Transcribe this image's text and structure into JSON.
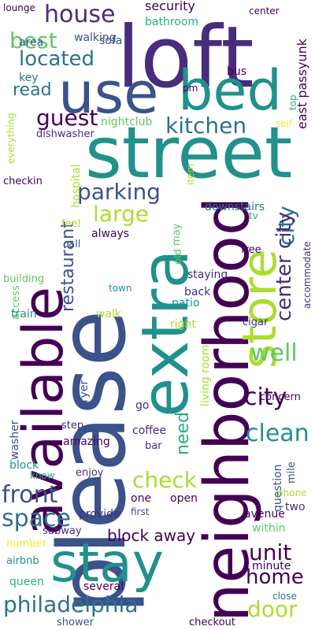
{
  "palette": {
    "dark_purple": "#440154",
    "indigo": "#472d7b",
    "blue": "#3b528b",
    "steel": "#2c728e",
    "teal": "#21918c",
    "green_teal": "#28ae80",
    "green": "#5ec962",
    "lime": "#addc30",
    "yellow": "#fde725"
  },
  "words": [
    {
      "text": "loft",
      "color": "#472d7b"
    },
    {
      "text": "street",
      "color": "#21918c"
    },
    {
      "text": "please",
      "color": "#3b528b"
    },
    {
      "text": "neighborhood",
      "color": "#440154"
    },
    {
      "text": "available",
      "color": "#440154"
    },
    {
      "text": "stay",
      "color": "#21918c"
    },
    {
      "text": "extra",
      "color": "#21918c"
    },
    {
      "text": "store",
      "color": "#addc30"
    },
    {
      "text": "use",
      "color": "#3b528b"
    },
    {
      "text": "bed",
      "color": "#21918c"
    },
    {
      "text": "house",
      "color": "#472d7b"
    },
    {
      "text": "best",
      "color": "#5ec962"
    },
    {
      "text": "located",
      "color": "#2c728e"
    },
    {
      "text": "read",
      "color": "#2c728e"
    },
    {
      "text": "guest",
      "color": "#440154"
    },
    {
      "text": "kitchen",
      "color": "#2c728e"
    },
    {
      "text": "parking",
      "color": "#3b528b"
    },
    {
      "text": "large",
      "color": "#addc30"
    },
    {
      "text": "city",
      "color": "#2c728e"
    },
    {
      "text": "center city",
      "color": "#472d7b"
    },
    {
      "text": "restaurant",
      "color": "#3b528b"
    },
    {
      "text": "well",
      "color": "#5ec962"
    },
    {
      "text": "city",
      "color": "#440154"
    },
    {
      "text": "need",
      "color": "#28ae80"
    },
    {
      "text": "clean",
      "color": "#21918c"
    },
    {
      "text": "check",
      "color": "#addc30"
    },
    {
      "text": "front",
      "color": "#3b528b"
    },
    {
      "text": "space",
      "color": "#2c728e"
    },
    {
      "text": "unit",
      "color": "#440154"
    },
    {
      "text": "home",
      "color": "#440154"
    },
    {
      "text": "philadelphia",
      "color": "#2c728e"
    },
    {
      "text": "door",
      "color": "#addc30"
    },
    {
      "text": "block away",
      "color": "#440154"
    },
    {
      "text": "east passyunk",
      "color": "#440154"
    },
    {
      "text": "security",
      "color": "#440154"
    },
    {
      "text": "center",
      "color": "#440154"
    },
    {
      "text": "lounge",
      "color": "#440154"
    },
    {
      "text": "area",
      "color": "#3b528b"
    },
    {
      "text": "sofa",
      "color": "#3b528b"
    },
    {
      "text": "walking",
      "color": "#3b528b"
    },
    {
      "text": "bathroom",
      "color": "#28ae80"
    },
    {
      "text": "key",
      "color": "#2c728e"
    },
    {
      "text": "bus",
      "color": "#440154"
    },
    {
      "text": "pm",
      "color": "#440154"
    },
    {
      "text": "top",
      "color": "#28ae80"
    },
    {
      "text": "self",
      "color": "#fde725"
    },
    {
      "text": "nightclub",
      "color": "#5ec962"
    },
    {
      "text": "dishwasher",
      "color": "#472d7b"
    },
    {
      "text": "everything",
      "color": "#addc30"
    },
    {
      "text": "checkin",
      "color": "#440154"
    },
    {
      "text": "hospital",
      "color": "#addc30"
    },
    {
      "text": "item",
      "color": "#addc30"
    },
    {
      "text": "downstairs",
      "color": "#2c728e"
    },
    {
      "text": "tv",
      "color": "#28ae80"
    },
    {
      "text": "feel",
      "color": "#addc30"
    },
    {
      "text": "always",
      "color": "#440154"
    },
    {
      "text": "old",
      "color": "#5ec962"
    },
    {
      "text": "may",
      "color": "#5ec962"
    },
    {
      "text": "call",
      "color": "#3b528b"
    },
    {
      "text": "free",
      "color": "#440154"
    },
    {
      "text": "accommodate",
      "color": "#472d7b"
    },
    {
      "text": "building",
      "color": "#5ec962"
    },
    {
      "text": "town",
      "color": "#21918c"
    },
    {
      "text": "staying",
      "color": "#472d7b"
    },
    {
      "text": "access",
      "color": "#5ec962"
    },
    {
      "text": "train",
      "color": "#21918c"
    },
    {
      "text": "back",
      "color": "#472d7b"
    },
    {
      "text": "patio",
      "color": "#21918c"
    },
    {
      "text": "walk",
      "color": "#addc30"
    },
    {
      "text": "right",
      "color": "#addc30"
    },
    {
      "text": "cigar",
      "color": "#472d7b"
    },
    {
      "text": "living room",
      "color": "#addc30"
    },
    {
      "text": "dryer",
      "color": "#3b528b"
    },
    {
      "text": "washer",
      "color": "#3b528b"
    },
    {
      "text": "go",
      "color": "#472d7b"
    },
    {
      "text": "concern",
      "color": "#440154"
    },
    {
      "text": "coffee",
      "color": "#472d7b"
    },
    {
      "text": "step",
      "color": "#472d7b"
    },
    {
      "text": "amazing",
      "color": "#440154"
    },
    {
      "text": "bar",
      "color": "#472d7b"
    },
    {
      "text": "block",
      "color": "#21918c"
    },
    {
      "text": "enjoy",
      "color": "#472d7b"
    },
    {
      "text": "know",
      "color": "#28ae80"
    },
    {
      "text": "mile",
      "color": "#3b528b"
    },
    {
      "text": "question",
      "color": "#3b528b"
    },
    {
      "text": "phone",
      "color": "#addc30"
    },
    {
      "text": "open",
      "color": "#440154"
    },
    {
      "text": "one",
      "color": "#440154"
    },
    {
      "text": "two",
      "color": "#472d7b"
    },
    {
      "text": "first",
      "color": "#3b528b"
    },
    {
      "text": "provide",
      "color": "#472d7b"
    },
    {
      "text": "avenue",
      "color": "#440154"
    },
    {
      "text": "subway",
      "color": "#472d7b"
    },
    {
      "text": "within",
      "color": "#5ec962"
    },
    {
      "text": "number",
      "color": "#fde725"
    },
    {
      "text": "minute",
      "color": "#440154"
    },
    {
      "text": "airbnb",
      "color": "#21918c"
    },
    {
      "text": "queen",
      "color": "#28ae80"
    },
    {
      "text": "several",
      "color": "#440154"
    },
    {
      "text": "close",
      "color": "#2c728e"
    },
    {
      "text": "shower",
      "color": "#3b528b"
    },
    {
      "text": "checkout",
      "color": "#440154"
    }
  ]
}
